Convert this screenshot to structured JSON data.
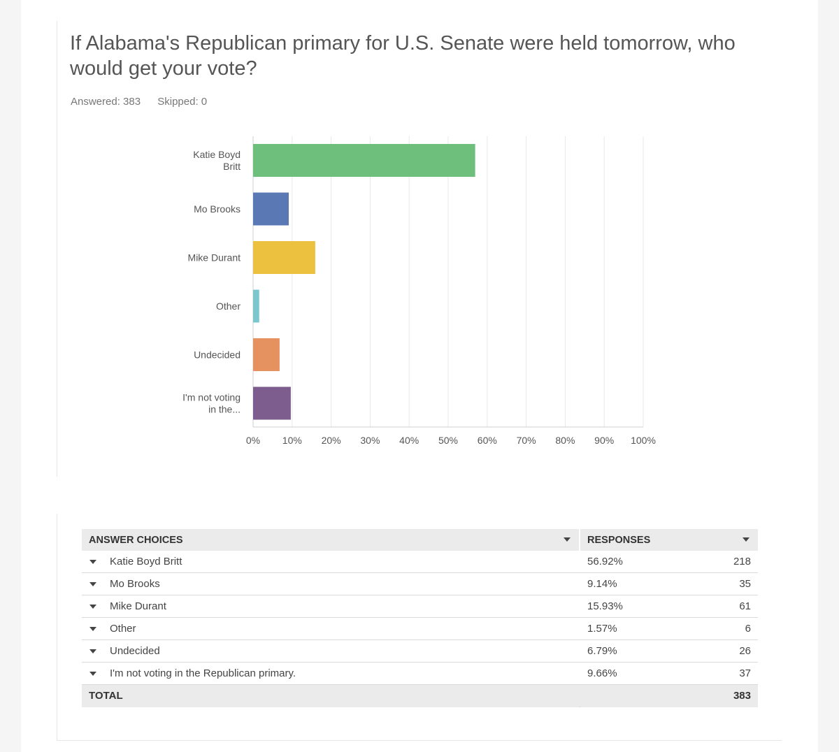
{
  "question": {
    "title": "If Alabama's Republican primary for U.S. Senate were held tomorrow, who would get your vote?",
    "answered": "Answered: 383",
    "skipped": "Skipped: 0"
  },
  "chart_data": {
    "type": "bar",
    "orientation": "horizontal",
    "categories": [
      [
        "Katie Boyd",
        "Britt"
      ],
      [
        "Mo Brooks"
      ],
      [
        "Mike Durant"
      ],
      [
        "Other"
      ],
      [
        "Undecided"
      ],
      [
        "I'm not voting",
        "in the..."
      ]
    ],
    "values": [
      56.92,
      9.14,
      15.93,
      1.57,
      6.79,
      9.66
    ],
    "colors": [
      "#6dbf7b",
      "#5978b4",
      "#ecc13f",
      "#7cc7cd",
      "#e59160",
      "#7c5d8d"
    ],
    "xlim": [
      0,
      100
    ],
    "xticks": [
      "0%",
      "10%",
      "20%",
      "30%",
      "40%",
      "50%",
      "60%",
      "70%",
      "80%",
      "90%",
      "100%"
    ],
    "grid": true
  },
  "table": {
    "header_choices": "ANSWER CHOICES",
    "header_responses": "RESPONSES",
    "rows": [
      {
        "choice": "Katie Boyd Britt",
        "percent": "56.92%",
        "count": "218"
      },
      {
        "choice": "Mo Brooks",
        "percent": "9.14%",
        "count": "35"
      },
      {
        "choice": "Mike Durant",
        "percent": "15.93%",
        "count": "61"
      },
      {
        "choice": "Other",
        "percent": "1.57%",
        "count": "6"
      },
      {
        "choice": "Undecided",
        "percent": "6.79%",
        "count": "26"
      },
      {
        "choice": "I'm not voting in the Republican primary.",
        "percent": "9.66%",
        "count": "37"
      }
    ],
    "total_label": "TOTAL",
    "total_count": "383"
  }
}
